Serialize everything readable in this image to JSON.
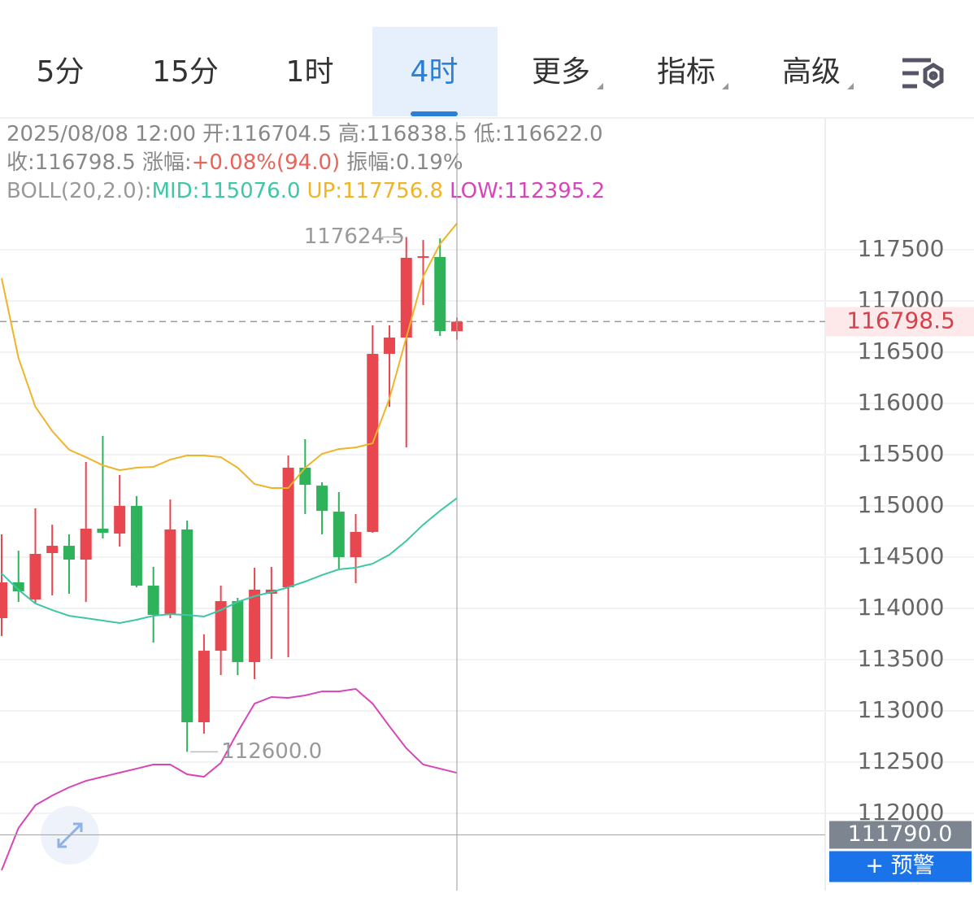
{
  "tabs": [
    "5分",
    "15分",
    "1时",
    "4时",
    "更多",
    "指标",
    "高级"
  ],
  "active_tab": 3,
  "info": {
    "line1": [
      "2025/08/08 12:00",
      "开:",
      "116704.5",
      "高:",
      "116838.5",
      "低:",
      "116622.0"
    ],
    "line2": [
      "收:",
      "116798.5",
      "涨幅:",
      "+0.08%(94.0)",
      "振幅:",
      "0.19%"
    ],
    "line3": [
      "BOLL(20,2.0):",
      "MID:115076.0",
      "UP:117756.8",
      "LOW:112395.2"
    ]
  },
  "alert_button": "+ 预警",
  "chart_data": {
    "type": "candlestick",
    "up_color": "#e8474f",
    "down_color": "#2eb35a",
    "open": [
      113905,
      114254,
      114087,
      114540,
      114611,
      114476,
      114778,
      114730,
      115000,
      114222,
      113944,
      114770,
      112889,
      113587,
      114071,
      113476,
      114143,
      114206,
      115373,
      115198,
      114944,
      114500,
      114746,
      116484,
      116643,
      117421,
      117429,
      116704.5
    ],
    "high": [
      114722,
      114563,
      114976,
      114817,
      114722,
      115429,
      115683,
      115302,
      115095,
      114405,
      115063,
      114857,
      113746,
      114222,
      114103,
      114397,
      114405,
      115492,
      115651,
      115230,
      115135,
      114921,
      116762,
      116762,
      117624.5,
      117595,
      117610,
      116838.5
    ],
    "low": [
      113730,
      114063,
      114056,
      114127,
      114143,
      114063,
      114683,
      114603,
      114206,
      113667,
      113905,
      112600,
      112778,
      113349,
      113349,
      113310,
      113508,
      113524,
      114921,
      114722,
      114373,
      114246,
      114738,
      115968,
      115571,
      116960,
      116659,
      116622.0
    ],
    "close": [
      114254,
      114167,
      114532,
      114611,
      114476,
      114778,
      114738,
      115000,
      114222,
      113937,
      114770,
      112889,
      113587,
      114071,
      113476,
      114183,
      114183,
      115373,
      115206,
      114952,
      114500,
      114746,
      116484,
      116643,
      117421,
      117437,
      116706,
      116798.5
    ],
    "lines": [
      {
        "color": "#3cc8a6",
        "values": [
          114341,
          114182,
          114048,
          113984,
          113928,
          113905,
          113881,
          113857,
          113889,
          113928,
          113944,
          113936,
          113921,
          113984,
          114063,
          114119,
          114159,
          114206,
          114262,
          114325,
          114381,
          114397,
          114436,
          114524,
          114659,
          114817,
          114952,
          115076.0
        ]
      },
      {
        "color": "#f0b428",
        "values": [
          117222,
          116444,
          115968,
          115730,
          115548,
          115476,
          115397,
          115349,
          115373,
          115381,
          115452,
          115492,
          115492,
          115476,
          115373,
          115214,
          115175,
          115175,
          115373,
          115508,
          115555,
          115571,
          115611,
          116048,
          116643,
          117238,
          117556,
          117756.8
        ]
      },
      {
        "color": "#d845b8",
        "values": [
          111444,
          111857,
          112079,
          112174,
          112254,
          112317,
          112357,
          112397,
          112436,
          112476,
          112476,
          112381,
          112357,
          112492,
          112793,
          113071,
          113135,
          113127,
          113151,
          113190,
          113190,
          113214,
          113071,
          112849,
          112635,
          112476,
          112436,
          112395.2
        ]
      }
    ],
    "ylim": [
      111246,
      117794
    ],
    "yticks": [
      112000,
      112500,
      113000,
      113500,
      114000,
      114500,
      115000,
      115500,
      116000,
      116500,
      117000,
      117500
    ],
    "grid": true,
    "max_marker": {
      "value": 117624.5,
      "label": "117624.5"
    },
    "min_marker": {
      "value": 112600,
      "label": "112600.0"
    },
    "last_price": {
      "value": 116798.5,
      "label": "116798.5"
    },
    "crosshair": {
      "value": 111790,
      "label": "111790.0"
    }
  }
}
